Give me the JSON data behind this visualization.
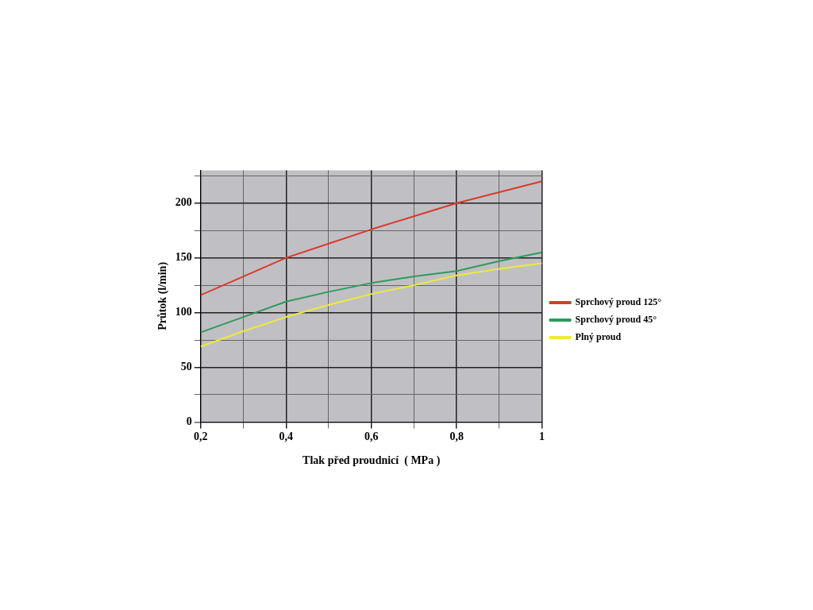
{
  "chart_data": {
    "type": "line",
    "xlabel": "Tlak před proudnicí  ( MPa )",
    "ylabel": "Průtok (l/min)",
    "x": [
      0.2,
      0.3,
      0.4,
      0.5,
      0.6,
      0.7,
      0.8,
      0.9,
      1
    ],
    "series": [
      {
        "name": "Sprchový proud 125°",
        "color": "#d93a2b",
        "values": [
          116,
          133,
          150,
          163,
          176,
          188,
          200,
          210,
          220
        ]
      },
      {
        "name": "Sprchový proud 45°",
        "color": "#2f9a5c",
        "values": [
          82,
          96,
          110,
          119,
          127,
          133,
          138,
          147,
          155
        ]
      },
      {
        "name": "Plný proud",
        "color": "#eeea3a",
        "values": [
          69,
          83,
          96,
          107,
          117,
          125,
          134,
          140,
          145
        ]
      }
    ],
    "xlim": [
      0.2,
      1
    ],
    "xticks": [
      {
        "value": 0.2,
        "label": "0,2"
      },
      {
        "value": 0.3,
        "label": null
      },
      {
        "value": 0.4,
        "label": "0,4"
      },
      {
        "value": 0.5,
        "label": null
      },
      {
        "value": 0.6,
        "label": "0,6"
      },
      {
        "value": 0.7,
        "label": null
      },
      {
        "value": 0.8,
        "label": "0,8"
      },
      {
        "value": 0.9,
        "label": null
      },
      1
    ],
    "ylim": [
      0,
      230
    ],
    "yticks": [
      0,
      {
        "value": 25,
        "label": null
      },
      50,
      {
        "value": 75,
        "label": null
      },
      100,
      {
        "value": 125,
        "label": null
      },
      150,
      {
        "value": 175,
        "label": null
      },
      200,
      {
        "value": 225,
        "label": null
      }
    ],
    "grid": true,
    "legend": "right",
    "marker": "none",
    "line_style": "solid"
  }
}
